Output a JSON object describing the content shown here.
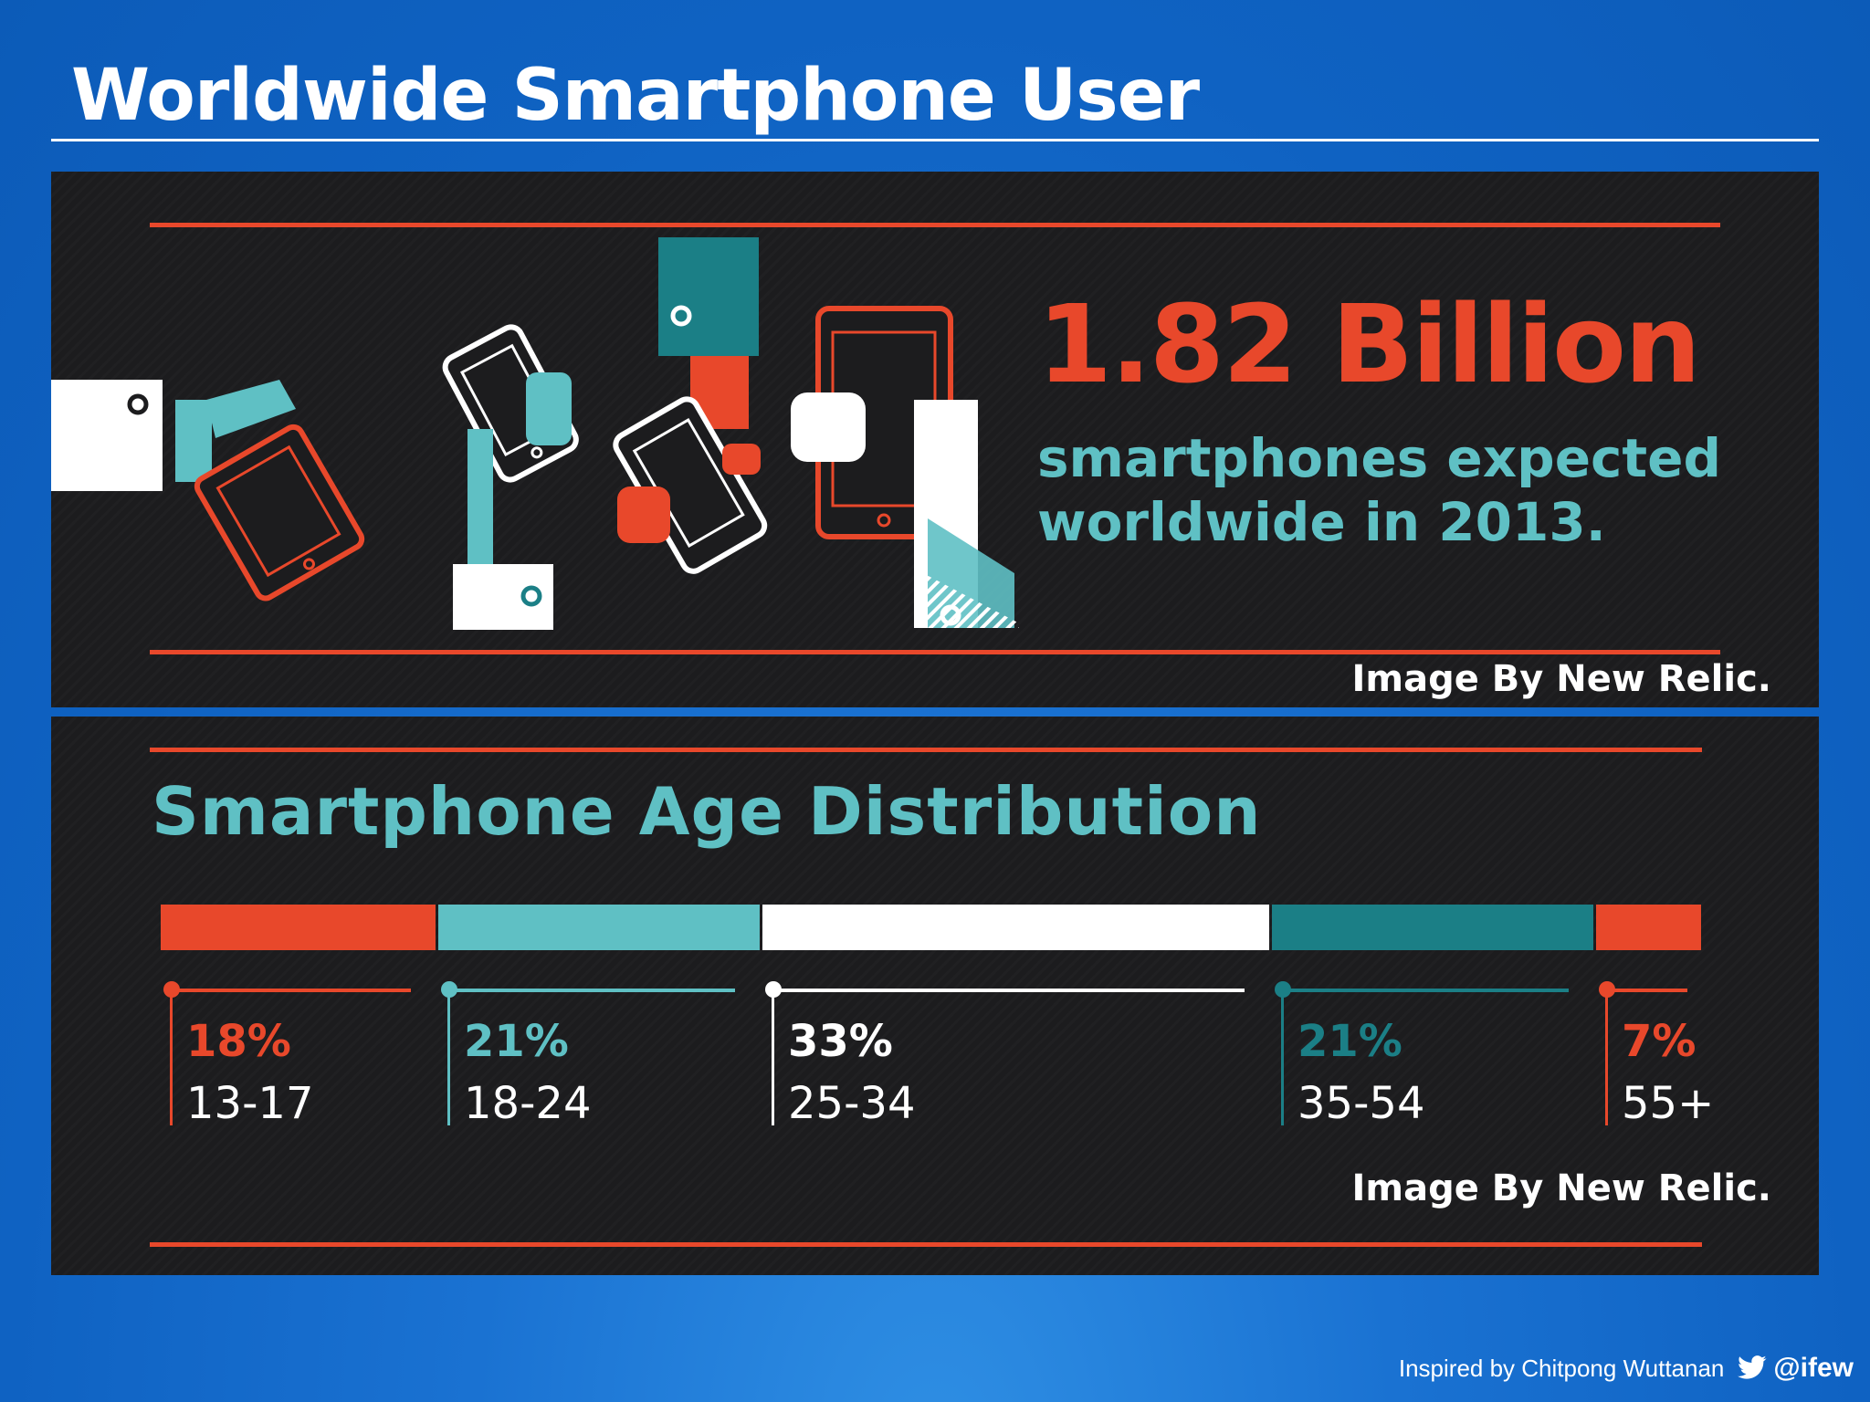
{
  "slide": {
    "title": "Worldwide Smartphone User",
    "footer_text": "Inspired by Chitpong Wuttanan",
    "footer_handle": "@ifew",
    "icons": [
      "twitter-bird-icon"
    ]
  },
  "top_panel": {
    "headline": "1.82 Billion",
    "subline_1": "smartphones expected",
    "subline_2": "worldwide in 2013.",
    "credit": "Image By New Relic.",
    "illustration": "hands-passing-smartphones-illustration"
  },
  "bottom_panel": {
    "title": "Smartphone Age Distribution",
    "credit": "Image By New Relic."
  },
  "colors": {
    "orange": "#e8482b",
    "teal_light": "#5fc0c4",
    "teal_dark": "#1b7f86",
    "white": "#ffffff",
    "panel_bg": "#1c1c1e",
    "slide_blue": "#1268c6"
  },
  "chart_data": {
    "type": "bar",
    "title": "Smartphone Age Distribution",
    "categories": [
      "13-17",
      "18-24",
      "25-34",
      "35-54",
      "55+"
    ],
    "values": [
      18,
      21,
      33,
      21,
      7
    ],
    "labels": [
      "18%",
      "21%",
      "33%",
      "21%",
      "7%"
    ],
    "unit": "%",
    "stacked_horizontal": true,
    "segment_colors": [
      "#e8482b",
      "#5fc0c4",
      "#ffffff",
      "#1b7f86",
      "#e8482b"
    ],
    "label_colors": [
      "#e8482b",
      "#5fc0c4",
      "#ffffff",
      "#1b7f86",
      "#e8482b"
    ]
  }
}
